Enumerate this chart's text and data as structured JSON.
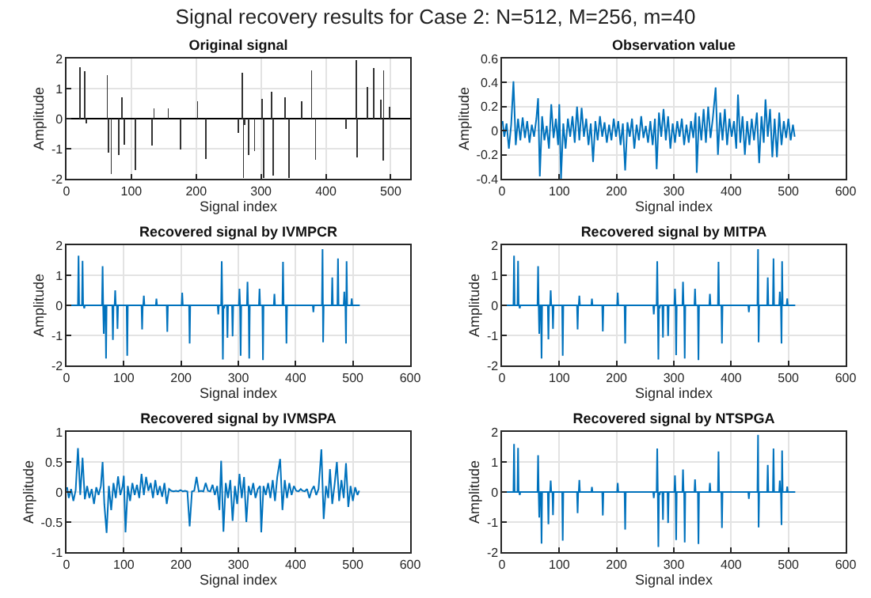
{
  "chart_data": [
    {
      "type": "bar",
      "title": "Original signal",
      "xlabel": "Signal index",
      "ylabel": "Amplitude",
      "annotations": [
        "Signal recovery results for Case 2: N=512, M=256, m=40"
      ],
      "x": [
        21,
        28,
        31,
        63,
        65,
        69,
        81,
        85,
        89,
        106,
        132,
        135,
        157,
        176,
        202,
        215,
        265,
        271,
        273,
        275,
        281,
        290,
        302,
        304,
        316,
        319,
        337,
        343,
        363,
        378,
        384,
        431,
        447,
        448,
        464,
        474,
        485,
        488,
        489,
        498
      ],
      "values": [
        1.72,
        1.57,
        -0.15,
        1.46,
        -1.12,
        -1.85,
        -1.2,
        0.72,
        -0.86,
        -1.7,
        -0.9,
        0.34,
        0.33,
        -1.02,
        0.57,
        -1.33,
        -0.47,
        1.53,
        -1.97,
        -0.2,
        -1.22,
        -1.08,
        0.65,
        -1.97,
        0.9,
        -1.9,
        0.7,
        -1.97,
        0.57,
        1.6,
        -1.37,
        -0.33,
        1.96,
        -1.28,
        1.05,
        1.68,
        0.62,
        -1.4,
        1.6,
        0.4
      ],
      "color": "#333333",
      "xlim": [
        0,
        530
      ],
      "xticks": [
        0,
        100,
        200,
        300,
        400,
        500
      ],
      "ylim": [
        -2,
        2
      ],
      "yticks": [
        -2,
        -1,
        0,
        1,
        2
      ],
      "grid": true
    },
    {
      "type": "line",
      "title": "Observation value",
      "xlabel": "Signal index",
      "ylabel": "Amplitude",
      "x": [
        1,
        4,
        8,
        12,
        16,
        20,
        24,
        28,
        32,
        36,
        40,
        44,
        48,
        52,
        56,
        60,
        63,
        66,
        70,
        74,
        78,
        82,
        86,
        90,
        94,
        98,
        100,
        103,
        107,
        111,
        115,
        119,
        123,
        127,
        131,
        135,
        139,
        143,
        147,
        151,
        155,
        159,
        163,
        167,
        171,
        175,
        179,
        183,
        187,
        191,
        195,
        199,
        203,
        207,
        211,
        215,
        219,
        223,
        227,
        231,
        235,
        239,
        243,
        247,
        251,
        255,
        259,
        263,
        267,
        270,
        274,
        278,
        282,
        286,
        290,
        294,
        298,
        302,
        306,
        310,
        314,
        318,
        322,
        326,
        330,
        334,
        338,
        340,
        344,
        348,
        352,
        356,
        360,
        364,
        368,
        373,
        377,
        381,
        385,
        389,
        393,
        397,
        401,
        405,
        409,
        412,
        416,
        420,
        424,
        428,
        432,
        436,
        440,
        445,
        449,
        453,
        457,
        460,
        464,
        468,
        472,
        476,
        480,
        484,
        488,
        492,
        496,
        500,
        504,
        508,
        511
      ],
      "values": [
        0.08,
        -0.05,
        0.06,
        -0.15,
        0.05,
        0.41,
        -0.12,
        0.1,
        -0.08,
        0.11,
        -0.06,
        0.08,
        -0.1,
        0.05,
        -0.05,
        0.1,
        0.27,
        -0.38,
        0.12,
        -0.08,
        0.04,
        -0.15,
        0.22,
        -0.06,
        0.1,
        -0.12,
        0.22,
        -0.4,
        0.06,
        -0.15,
        0.1,
        -0.05,
        0.12,
        -0.1,
        0.2,
        -0.08,
        0.19,
        -0.05,
        0.1,
        -0.12,
        0.06,
        -0.26,
        0.08,
        -0.08,
        0.12,
        -0.05,
        0.07,
        -0.1,
        0.05,
        -0.08,
        0.1,
        -0.05,
        0.08,
        -0.12,
        0.06,
        -0.33,
        0.07,
        -0.05,
        0.1,
        -0.15,
        0.05,
        -0.08,
        0.12,
        -0.06,
        0.04,
        -0.1,
        0.08,
        -0.12,
        0.1,
        -0.32,
        0.15,
        -0.05,
        0.18,
        -0.08,
        0.12,
        -0.15,
        0.06,
        -0.1,
        0.08,
        -0.05,
        0.1,
        -0.12,
        0.05,
        -0.1,
        0.08,
        -0.06,
        0.15,
        -0.35,
        0.12,
        -0.08,
        0.18,
        -0.1,
        0.2,
        -0.06,
        0.1,
        0.36,
        -0.2,
        0.15,
        -0.08,
        0.18,
        -0.12,
        0.1,
        -0.05,
        0.08,
        -0.15,
        0.3,
        -0.1,
        0.12,
        -0.2,
        0.08,
        -0.12,
        0.1,
        -0.08,
        0.15,
        -0.27,
        0.12,
        -0.1,
        0.26,
        -0.05,
        0.18,
        -0.22,
        0.1,
        -0.22,
        0.15,
        -0.12,
        0.08,
        -0.06,
        0.1,
        -0.08,
        0.05,
        -0.05
      ],
      "color": "#0072bd",
      "xlim": [
        0,
        600
      ],
      "xticks": [
        0,
        100,
        200,
        300,
        400,
        500,
        600
      ],
      "ylim": [
        -0.4,
        0.6
      ],
      "yticks": [
        -0.4,
        -0.2,
        0,
        0.2,
        0.4,
        0.6
      ],
      "grid": true
    },
    {
      "type": "line",
      "title": "Recovered signal by IVMPCR",
      "xlabel": "Signal index",
      "ylabel": "Amplitude",
      "x": [
        1,
        20,
        21,
        22,
        27,
        28,
        29,
        30,
        31,
        32,
        62,
        63,
        64,
        65,
        66,
        68,
        69,
        70,
        80,
        81,
        82,
        84,
        85,
        86,
        88,
        89,
        90,
        105,
        106,
        107,
        131,
        132,
        133,
        134,
        135,
        136,
        156,
        157,
        158,
        175,
        176,
        177,
        201,
        202,
        203,
        214,
        215,
        216,
        264,
        265,
        266,
        270,
        271,
        272,
        273,
        274,
        275,
        276,
        280,
        281,
        282,
        289,
        290,
        291,
        301,
        302,
        303,
        304,
        305,
        315,
        316,
        317,
        318,
        319,
        320,
        336,
        337,
        338,
        342,
        343,
        344,
        362,
        363,
        364,
        377,
        378,
        379,
        383,
        384,
        385,
        430,
        431,
        432,
        446,
        447,
        448,
        449,
        463,
        464,
        465,
        473,
        474,
        475,
        484,
        485,
        486,
        487,
        488,
        489,
        490,
        497,
        498,
        499,
        512
      ],
      "values": [
        0,
        0,
        1.65,
        0,
        0,
        1.48,
        0,
        0,
        -0.1,
        0,
        0,
        1.3,
        0,
        -0.95,
        0,
        0,
        -1.77,
        0,
        0,
        -1.15,
        0,
        0,
        0.5,
        0,
        0,
        -0.78,
        0,
        0,
        -1.68,
        0,
        0,
        -0.8,
        0,
        0,
        0.32,
        0,
        0,
        0.22,
        0,
        0,
        -0.88,
        0,
        0,
        0.42,
        0,
        0,
        -1.27,
        0,
        0,
        -0.3,
        0,
        0,
        1.47,
        0,
        -1.8,
        0,
        -0.1,
        0,
        0,
        -1.08,
        0,
        0,
        -1.03,
        0,
        0,
        0.55,
        0,
        -1.68,
        0,
        0,
        0.78,
        0,
        0,
        -1.77,
        0,
        0,
        0.55,
        0,
        0,
        -1.82,
        0,
        0,
        0.38,
        0,
        0,
        1.45,
        0,
        0,
        -1.27,
        0,
        0,
        -0.23,
        0,
        0,
        1.87,
        -1.23,
        0,
        0,
        0.93,
        0,
        0,
        1.56,
        0,
        0,
        0.45,
        0,
        0,
        -1.27,
        1.47,
        0,
        0,
        0.23,
        0,
        0
      ],
      "color": "#0072bd",
      "xlim": [
        0,
        600
      ],
      "xticks": [
        0,
        100,
        200,
        300,
        400,
        500,
        600
      ],
      "ylim": [
        -2,
        2
      ],
      "yticks": [
        -2,
        -1,
        0,
        1,
        2
      ],
      "grid": true
    },
    {
      "type": "line",
      "title": "Recovered signal by MITPA",
      "xlabel": "Signal index",
      "ylabel": "Amplitude",
      "x": [
        1,
        20,
        21,
        22,
        27,
        28,
        29,
        30,
        31,
        32,
        62,
        63,
        64,
        65,
        66,
        68,
        69,
        70,
        80,
        81,
        82,
        84,
        85,
        86,
        88,
        89,
        90,
        105,
        106,
        107,
        131,
        132,
        133,
        134,
        135,
        136,
        156,
        157,
        158,
        175,
        176,
        177,
        201,
        202,
        203,
        214,
        215,
        216,
        264,
        265,
        266,
        270,
        271,
        272,
        273,
        274,
        275,
        276,
        280,
        281,
        282,
        289,
        290,
        291,
        301,
        302,
        303,
        304,
        305,
        315,
        316,
        317,
        318,
        319,
        320,
        336,
        337,
        338,
        342,
        343,
        344,
        362,
        363,
        364,
        377,
        378,
        379,
        383,
        384,
        385,
        430,
        431,
        432,
        446,
        447,
        448,
        449,
        463,
        464,
        465,
        473,
        474,
        475,
        484,
        485,
        486,
        487,
        488,
        489,
        490,
        497,
        498,
        499,
        512
      ],
      "values": [
        0,
        0,
        1.65,
        0,
        0,
        1.48,
        0,
        0,
        -0.1,
        0,
        0,
        1.3,
        0,
        -0.95,
        0,
        0,
        -1.77,
        0,
        0,
        -1.13,
        0,
        0,
        0.5,
        0,
        0,
        -0.78,
        0,
        0,
        -1.68,
        0,
        0,
        -0.8,
        0,
        0,
        0.32,
        0,
        0,
        0.22,
        0,
        0,
        -0.87,
        0,
        0,
        0.42,
        0,
        0,
        -1.27,
        0,
        0,
        -0.3,
        0,
        0,
        1.47,
        0,
        -1.8,
        0,
        -0.1,
        0,
        0,
        -1.07,
        0,
        0,
        -1.02,
        0,
        0,
        0.55,
        0,
        -1.66,
        0,
        0,
        0.78,
        0,
        0,
        -1.77,
        0,
        0,
        0.55,
        0,
        0,
        -1.82,
        0,
        0,
        0.38,
        0,
        0,
        1.45,
        0,
        0,
        -1.27,
        0,
        0,
        -0.23,
        0,
        0,
        1.87,
        -1.23,
        0,
        0,
        0.93,
        0,
        0,
        1.56,
        0,
        0,
        0.45,
        0,
        0,
        -1.27,
        1.47,
        0,
        0,
        0.23,
        0,
        0
      ],
      "color": "#0072bd",
      "xlim": [
        0,
        600
      ],
      "xticks": [
        0,
        100,
        200,
        300,
        400,
        500,
        600
      ],
      "ylim": [
        -2,
        2
      ],
      "yticks": [
        -2,
        -1,
        0,
        1,
        2
      ],
      "grid": true
    },
    {
      "type": "line",
      "title": "Recovered signal by IVMSPA",
      "xlabel": "Signal index",
      "ylabel": "Amplitude",
      "x": [
        1,
        4,
        8,
        12,
        16,
        20,
        24,
        28,
        32,
        36,
        40,
        44,
        48,
        52,
        56,
        60,
        63,
        66,
        70,
        74,
        78,
        82,
        86,
        90,
        94,
        98,
        100,
        103,
        107,
        111,
        115,
        119,
        123,
        127,
        131,
        135,
        139,
        143,
        147,
        151,
        155,
        159,
        163,
        167,
        171,
        175,
        179,
        183,
        187,
        191,
        195,
        199,
        203,
        207,
        211,
        215,
        219,
        223,
        227,
        231,
        235,
        239,
        243,
        247,
        251,
        255,
        259,
        263,
        267,
        270,
        274,
        278,
        282,
        286,
        290,
        294,
        298,
        302,
        306,
        310,
        314,
        318,
        322,
        326,
        330,
        334,
        338,
        340,
        344,
        348,
        352,
        356,
        360,
        364,
        368,
        373,
        377,
        381,
        385,
        389,
        393,
        397,
        401,
        405,
        409,
        412,
        416,
        420,
        424,
        428,
        432,
        436,
        440,
        445,
        449,
        453,
        457,
        460,
        464,
        468,
        472,
        476,
        480,
        484,
        488,
        492,
        496,
        500,
        504,
        508,
        511
      ],
      "values": [
        0.08,
        -0.1,
        0.05,
        -0.15,
        0.03,
        0.73,
        -0.05,
        0.57,
        -0.12,
        0.1,
        -0.1,
        0.05,
        -0.2,
        0.08,
        -0.05,
        0.1,
        0.5,
        -0.2,
        -0.68,
        0.1,
        -0.3,
        0.15,
        -0.1,
        0.26,
        -0.05,
        0.1,
        0.27,
        -0.67,
        0.1,
        -0.15,
        0.15,
        -0.05,
        0.12,
        -0.1,
        0.3,
        -0.05,
        0.25,
        0.02,
        0.15,
        -0.1,
        0.2,
        -0.05,
        0.1,
        -0.08,
        0.15,
        -0.2,
        0.05,
        0.02,
        0.01,
        0.02,
        0.01,
        0.03,
        0.01,
        0.02,
        0.01,
        -0.57,
        0.01,
        0.02,
        0.25,
        0.01,
        0.02,
        0.01,
        0.15,
        0.02,
        0.01,
        0.12,
        -0.05,
        0.1,
        -0.3,
        0.52,
        -0.66,
        0.15,
        -0.1,
        0.2,
        -0.48,
        0.1,
        -0.2,
        0.3,
        -0.1,
        0.25,
        -0.5,
        0.1,
        -0.05,
        0.15,
        -0.1,
        0.05,
        0.1,
        -0.67,
        0.1,
        -0.05,
        0.15,
        -0.1,
        0.2,
        -0.15,
        0.25,
        0.55,
        -0.3,
        0.2,
        -0.1,
        0.15,
        -0.05,
        0.1,
        0.02,
        0.01,
        0.05,
        0.02,
        0.01,
        0.05,
        -0.1,
        0.03,
        0.1,
        -0.05,
        0.05,
        0.71,
        -0.45,
        0.1,
        -0.1,
        0.38,
        -0.2,
        0.12,
        0.5,
        -0.15,
        0.2,
        -0.1,
        0.48,
        -0.25,
        0.1,
        -0.15,
        0.08,
        -0.05,
        0.02
      ],
      "color": "#0072bd",
      "xlim": [
        0,
        600
      ],
      "xticks": [
        0,
        100,
        200,
        300,
        400,
        500,
        600
      ],
      "ylim": [
        -1,
        1
      ],
      "yticks": [
        -1,
        -0.5,
        0,
        0.5,
        1
      ],
      "grid": true
    },
    {
      "type": "line",
      "title": "Recovered signal by NTSPGA",
      "xlabel": "Signal index",
      "ylabel": "Amplitude",
      "x": [
        1,
        20,
        21,
        22,
        27,
        28,
        29,
        30,
        31,
        32,
        62,
        63,
        64,
        65,
        66,
        68,
        69,
        70,
        80,
        81,
        82,
        84,
        85,
        86,
        88,
        89,
        90,
        105,
        106,
        107,
        131,
        132,
        133,
        134,
        135,
        136,
        156,
        157,
        158,
        175,
        176,
        177,
        201,
        202,
        203,
        214,
        215,
        216,
        264,
        265,
        266,
        270,
        271,
        272,
        273,
        274,
        275,
        276,
        280,
        281,
        282,
        289,
        290,
        291,
        301,
        302,
        303,
        304,
        305,
        315,
        316,
        317,
        318,
        319,
        320,
        336,
        337,
        338,
        342,
        343,
        344,
        362,
        363,
        364,
        377,
        378,
        379,
        383,
        384,
        385,
        430,
        431,
        432,
        446,
        447,
        448,
        449,
        463,
        464,
        465,
        473,
        474,
        475,
        484,
        485,
        486,
        487,
        488,
        489,
        490,
        497,
        498,
        499,
        512
      ],
      "values": [
        0,
        0,
        1.6,
        0,
        0,
        1.47,
        0,
        0,
        -0.1,
        0,
        0,
        1.22,
        0,
        -0.85,
        0,
        0,
        -1.72,
        0,
        0,
        -1.07,
        0,
        0,
        0.38,
        0,
        0,
        -0.77,
        0,
        0,
        -1.62,
        0,
        0,
        -0.7,
        0,
        0,
        0.4,
        0,
        0,
        0.17,
        0,
        0,
        -0.78,
        0,
        0,
        0.3,
        0,
        0,
        -1.25,
        0,
        0,
        -0.2,
        0,
        0,
        1.45,
        0,
        -1.83,
        0,
        -0.1,
        0,
        0,
        -0.93,
        0,
        0,
        -1.03,
        0,
        0,
        0.55,
        0,
        -1.6,
        0,
        0,
        0.75,
        0,
        0,
        -1.68,
        0,
        0,
        0.42,
        0,
        0,
        -1.73,
        0,
        0,
        0.3,
        0,
        0,
        1.35,
        0,
        0,
        -1.2,
        0,
        0,
        -0.23,
        0,
        0,
        1.9,
        -1.18,
        0,
        0,
        0.9,
        0,
        0,
        1.45,
        0,
        0,
        0.38,
        0,
        0,
        -1.1,
        1.38,
        0,
        0,
        0.18,
        0,
        0
      ],
      "color": "#0072bd",
      "xlim": [
        0,
        600
      ],
      "xticks": [
        0,
        100,
        200,
        300,
        400,
        500,
        600
      ],
      "ylim": [
        -2,
        2
      ],
      "yticks": [
        -2,
        -1,
        0,
        1,
        2
      ],
      "grid": true
    }
  ]
}
